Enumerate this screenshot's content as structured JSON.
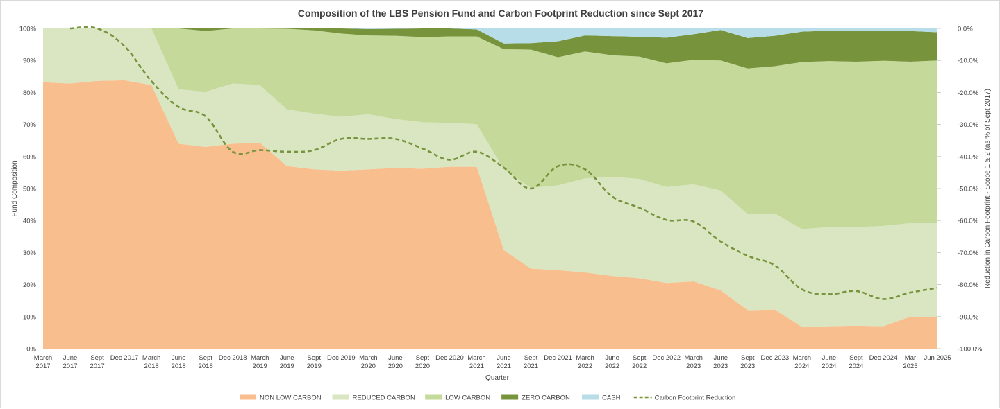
{
  "chart_data": {
    "type": "area",
    "title": "Composition of the LBS Pension Fund and Carbon Footprint Reduction since Sept 2017",
    "xlabel": "Quarter",
    "ylabel": "Fund Composition",
    "y2label": "Reduction in Carbon Footprint - Scope 1 & 2 (as % of Sept 2017)",
    "ylim": [
      0,
      100
    ],
    "y2lim": [
      -100,
      0
    ],
    "y_ticks": [
      "0%",
      "10%",
      "20%",
      "30%",
      "40%",
      "50%",
      "60%",
      "70%",
      "80%",
      "90%",
      "100%"
    ],
    "y2_ticks": [
      "-100.0%",
      "-90.0%",
      "-80.0%",
      "-70.0%",
      "-60.0%",
      "-50.0%",
      "-40.0%",
      "-30.0%",
      "-20.0%",
      "-10.0%",
      "0.0%"
    ],
    "categories": [
      [
        "March",
        "2017"
      ],
      [
        "June",
        "2017"
      ],
      [
        "Sept",
        "2017"
      ],
      [
        "Dec 2017"
      ],
      [
        "March",
        "2018"
      ],
      [
        "June",
        "2018"
      ],
      [
        "Sept",
        "2018"
      ],
      [
        "Dec 2018"
      ],
      [
        "March",
        "2019"
      ],
      [
        "June",
        "2019"
      ],
      [
        "Sept",
        "2019"
      ],
      [
        "Dec 2019"
      ],
      [
        "March",
        "2020"
      ],
      [
        "June",
        "2020"
      ],
      [
        "Sept",
        "2020"
      ],
      [
        "Dec 2020"
      ],
      [
        "March",
        "2021"
      ],
      [
        "June",
        "2021"
      ],
      [
        "Sept",
        "2021"
      ],
      [
        "Dec 2021"
      ],
      [
        "March",
        "2022"
      ],
      [
        "June",
        "2022"
      ],
      [
        "Sept",
        "2022"
      ],
      [
        "Dec 2022"
      ],
      [
        "March",
        "2023"
      ],
      [
        "June",
        "2023"
      ],
      [
        "Sept",
        "2023"
      ],
      [
        "Dec 2023"
      ],
      [
        "March",
        "2024"
      ],
      [
        "June",
        "2024"
      ],
      [
        "Sept",
        "2024"
      ],
      [
        "Dec 2024"
      ],
      [
        "Mar",
        "2025"
      ],
      [
        "Jun 2025"
      ]
    ],
    "series": [
      {
        "name": "NON LOW CARBON",
        "color": "#f8be8d",
        "values": [
          83.2,
          82.8,
          83.6,
          83.8,
          82.3,
          64.0,
          63.0,
          64.0,
          64.3,
          57.0,
          56.0,
          55.6,
          56.0,
          56.4,
          56.2,
          56.8,
          56.8,
          30.8,
          25.0,
          24.5,
          23.8,
          22.7,
          22.0,
          20.5,
          21.0,
          18.2,
          12.0,
          12.2,
          6.8,
          7.0,
          7.2,
          7.0,
          10.0,
          9.8
        ]
      },
      {
        "name": "REDUCED CARBON",
        "color": "#d9e6c1",
        "values": [
          16.8,
          17.2,
          16.4,
          16.2,
          17.7,
          17.0,
          17.2,
          18.8,
          18.0,
          17.7,
          17.4,
          16.8,
          17.2,
          15.3,
          14.5,
          13.7,
          13.3,
          25.2,
          25.2,
          26.5,
          29.4,
          31.0,
          31.0,
          30.0,
          30.3,
          31.2,
          30.0,
          30.0,
          30.5,
          31.0,
          30.8,
          31.3,
          29.2,
          29.4
        ]
      },
      {
        "name": "LOW CARBON",
        "color": "#c5d99b",
        "values": [
          0,
          0,
          0,
          0,
          0,
          19.0,
          19.0,
          17.2,
          17.7,
          25.2,
          26.0,
          26.0,
          24.6,
          26.0,
          26.6,
          27.0,
          27.4,
          37.5,
          43.2,
          40.0,
          39.6,
          37.9,
          38.2,
          38.6,
          38.9,
          40.6,
          45.5,
          46.0,
          52.2,
          51.8,
          51.6,
          51.6,
          50.4,
          50.8
        ]
      },
      {
        "name": "ZERO CARBON",
        "color": "#77933c",
        "values": [
          0,
          0,
          0,
          0,
          0,
          0,
          0.8,
          0,
          0,
          0.1,
          0.6,
          1.6,
          2.0,
          2.2,
          2.7,
          2.5,
          2.2,
          1.8,
          2.0,
          5.0,
          5.0,
          6.0,
          6.2,
          8.0,
          8.0,
          9.5,
          9.5,
          9.5,
          9.5,
          9.5,
          9.6,
          9.3,
          9.6,
          8.8
        ]
      },
      {
        "name": "CASH",
        "color": "#b7dde8",
        "values": [
          0,
          0,
          0,
          0,
          0,
          0,
          0,
          0,
          0,
          0,
          0,
          0,
          0.2,
          0.1,
          0,
          0,
          0.3,
          4.7,
          4.6,
          4.0,
          2.2,
          2.4,
          2.6,
          2.9,
          1.8,
          0.5,
          3.0,
          2.3,
          1.0,
          0.7,
          0.8,
          0.8,
          0.8,
          1.2
        ]
      }
    ],
    "line": {
      "name": "Carbon Footprint Reduction",
      "color": "#77933c",
      "start_index": 1,
      "values": [
        0,
        0,
        -5.5,
        -16.5,
        -24.5,
        -27.5,
        -38.5,
        -38.0,
        -38.5,
        -38.0,
        -34.5,
        -34.5,
        -34.5,
        -37.5,
        -41.0,
        -38.5,
        -43.5,
        -50.0,
        -43.0,
        -44.0,
        -52.5,
        -56.0,
        -59.8,
        -60.3,
        -66.5,
        -71.0,
        -74.0,
        -81.5,
        -83.0,
        -82.0,
        -84.5,
        -82.5,
        -81.0
      ]
    },
    "legend_position": "bottom"
  }
}
